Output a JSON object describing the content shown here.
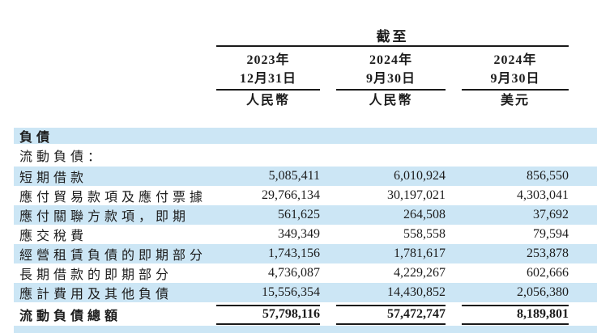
{
  "header": {
    "as_of_label": "截至",
    "columns": [
      {
        "year": "2023年",
        "date": "12月31日",
        "currency": "人民幣"
      },
      {
        "year": "2024年",
        "date": "9月30日",
        "currency": "人民幣"
      },
      {
        "year": "2024年",
        "date": "9月30日",
        "currency": "美元"
      }
    ]
  },
  "table": {
    "section_title": "負債",
    "subsection_title": "流動負債：",
    "rows": [
      {
        "label": "短期借款",
        "values": [
          "5,085,411",
          "6,010,924",
          "856,550"
        ]
      },
      {
        "label": "應付貿易款項及應付票據",
        "values": [
          "29,766,134",
          "30,197,021",
          "4,303,041"
        ]
      },
      {
        "label": "應付關聯方款項，即期",
        "values": [
          "561,625",
          "264,508",
          "37,692"
        ]
      },
      {
        "label": "應交稅費",
        "values": [
          "349,349",
          "558,558",
          "79,594"
        ]
      },
      {
        "label": "經營租賃負債的即期部分",
        "values": [
          "1,743,156",
          "1,781,617",
          "253,878"
        ]
      },
      {
        "label": "長期借款的即期部分",
        "values": [
          "4,736,087",
          "4,229,267",
          "602,666"
        ]
      },
      {
        "label": "應計費用及其他負債",
        "values": [
          "15,556,354",
          "14,430,852",
          "2,056,380"
        ]
      }
    ],
    "total_row": {
      "label": "流動負債總額",
      "values": [
        "57,798,116",
        "57,472,747",
        "8,189,801"
      ]
    }
  },
  "colors": {
    "highlight": "#cce6f5",
    "text": "#1c1c1c",
    "rule": "#1a1a1a"
  }
}
